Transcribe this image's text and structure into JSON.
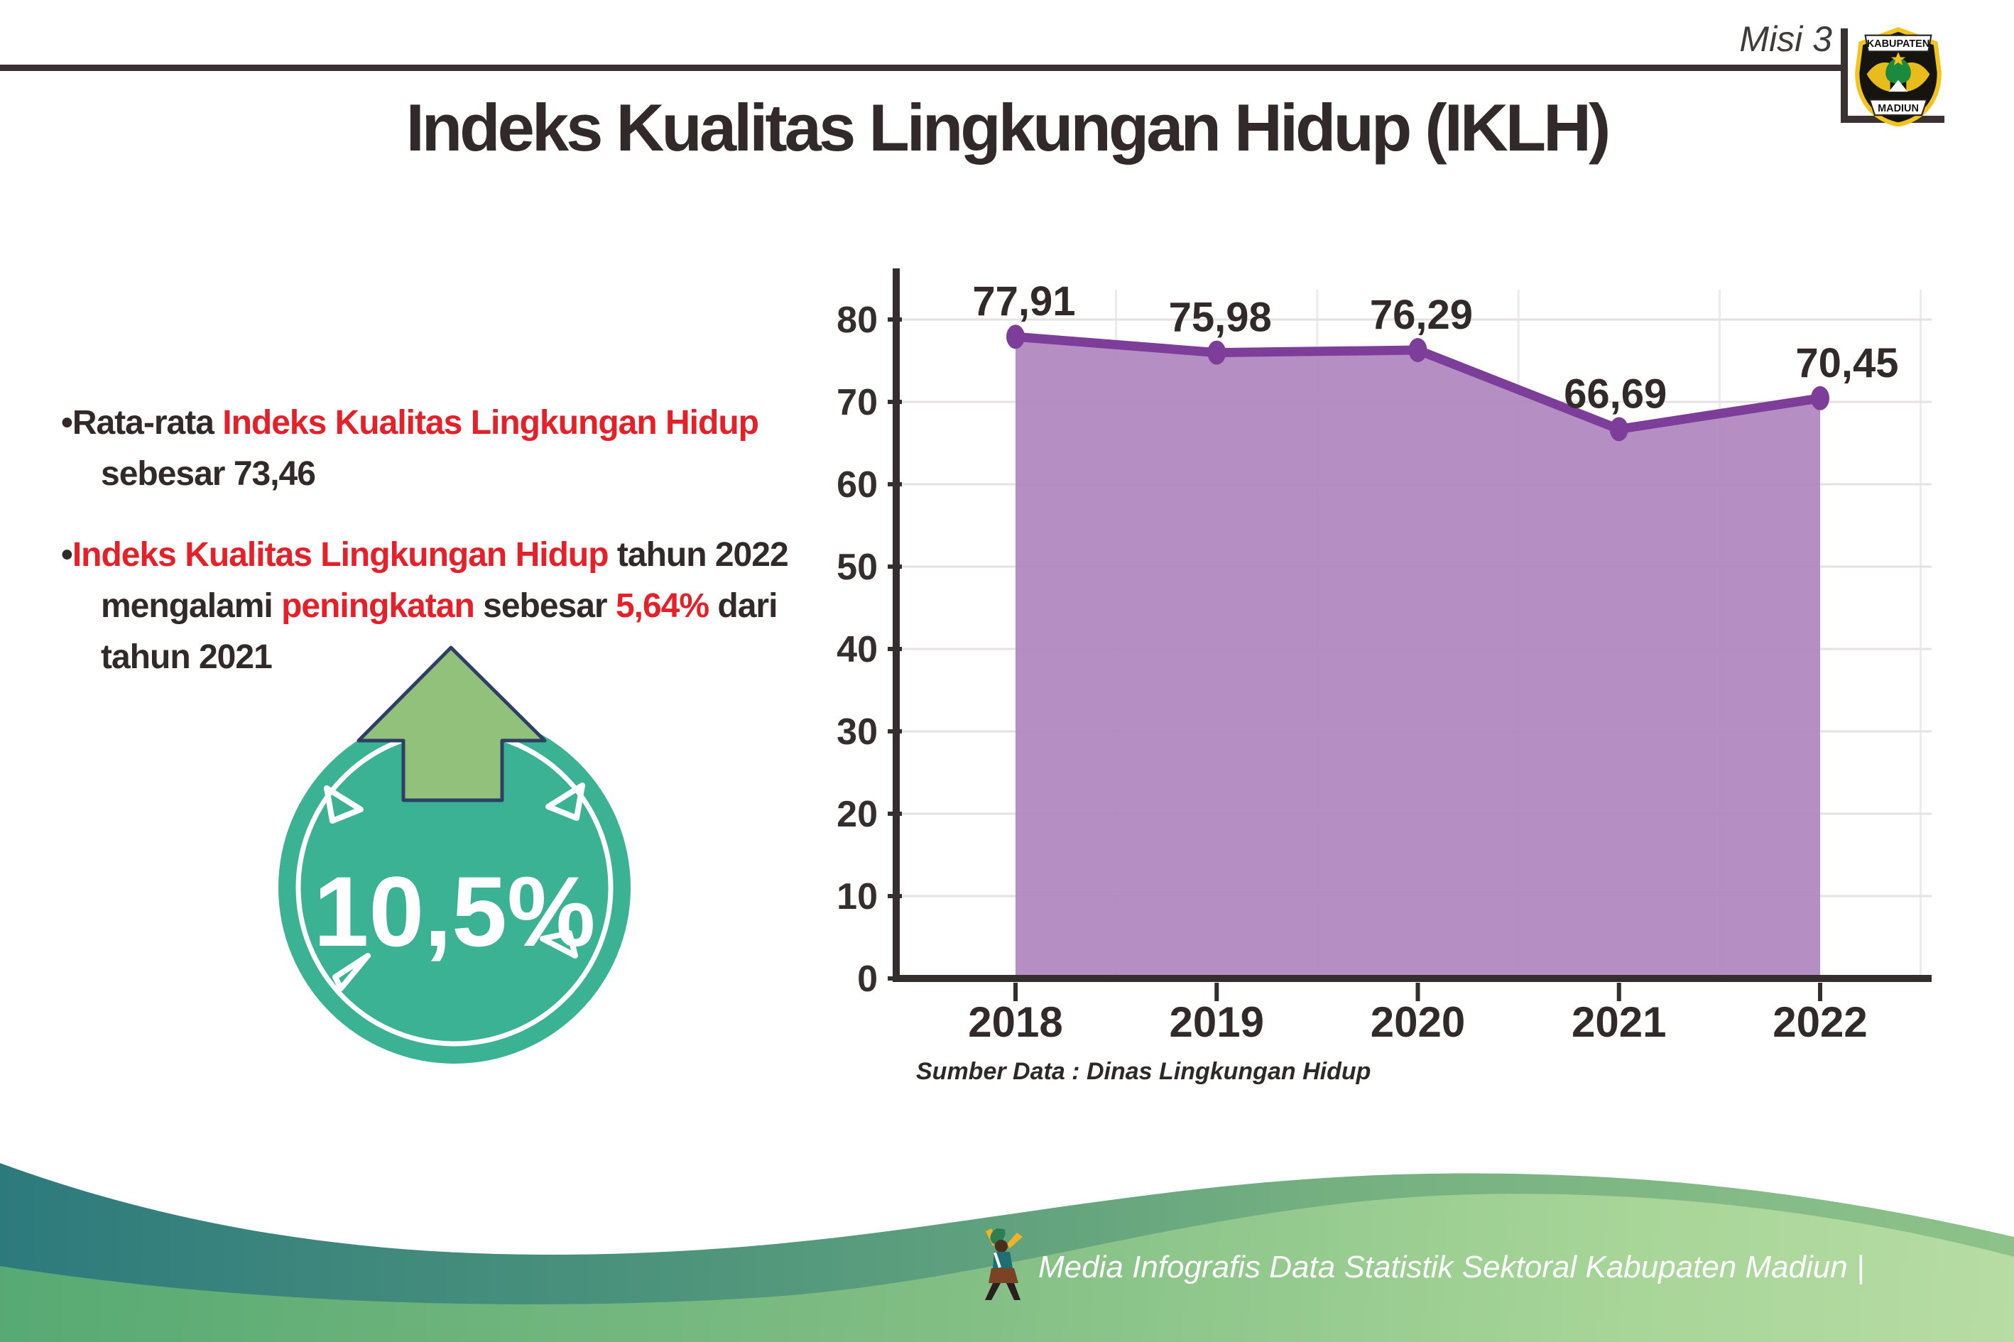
{
  "header": {
    "misi_label": "Misi 3",
    "logo": {
      "top_text": "KABUPATEN",
      "bottom_text": "MADIUN"
    }
  },
  "title": "Indeks Kualitas Lingkungan Hidup (IKLH)",
  "bullets": {
    "b1": {
      "marker": "•",
      "l1_normal": "Rata-rata ",
      "l1_red": "Indeks Kualitas Lingkungan Hidup",
      "l2": "sebesar 73,46"
    },
    "b2": {
      "marker": "•",
      "l1_red": "Indeks Kualitas Lingkungan Hidup",
      "l1_normal": " tahun 2022",
      "l2_n1": "mengalami ",
      "l2_red1": "peningkatan",
      "l2_n2": " sebesar ",
      "l2_red2": "5,64%",
      "l2_n3": " dari",
      "l3": "tahun 2021"
    }
  },
  "badge": {
    "value": "10,5%"
  },
  "chart_data": {
    "type": "area",
    "categories": [
      "2018",
      "2019",
      "2020",
      "2021",
      "2022"
    ],
    "values": [
      77.91,
      75.98,
      76.29,
      66.69,
      70.45
    ],
    "point_labels": [
      "77,91",
      "75,98",
      "76,29",
      "66,69",
      "70,45"
    ],
    "title": "",
    "xlabel": "",
    "ylabel": "",
    "ylim": [
      0,
      85
    ],
    "ytick_step": 10,
    "ytick_max": 80,
    "grid": true,
    "legend": "none",
    "fill_color": "#AF86BF",
    "line_color": "#7C3E99",
    "source_note": "Sumber Data : Dinas Lingkungan Hidup"
  },
  "source": "Sumber Data : Dinas Lingkungan Hidup",
  "footer": {
    "brand": "Media Infografis Data Statistik Sektoral Kabupaten Madiun |"
  },
  "colors": {
    "red_accent": "#E42028",
    "badge_teal": "#3AB293",
    "arrow_green": "#92C17B",
    "purple_fill": "#AF86BF",
    "purple_line": "#7C3E99"
  }
}
